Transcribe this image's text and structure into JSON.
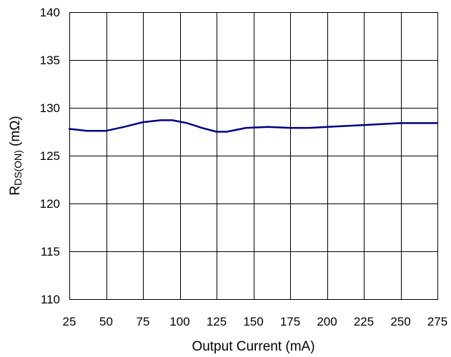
{
  "chart_data": {
    "type": "line",
    "title": "",
    "xlabel": "Output Current (mA)",
    "ylabel_main": "R",
    "ylabel_sub": "DS(ON)",
    "ylabel_unit": " (mΩ)",
    "xlim": [
      25,
      275
    ],
    "ylim": [
      110,
      140
    ],
    "x_ticks": [
      25,
      50,
      75,
      100,
      125,
      150,
      175,
      200,
      225,
      250,
      275
    ],
    "y_ticks": [
      110,
      115,
      120,
      125,
      130,
      135,
      140
    ],
    "grid": true,
    "series": [
      {
        "color": "#000080",
        "x": [
          25,
          37,
          50,
          62,
          75,
          87,
          95,
          105,
          115,
          125,
          132,
          145,
          160,
          175,
          188,
          200,
          225,
          250,
          275
        ],
        "y": [
          127.8,
          127.6,
          127.6,
          128.0,
          128.5,
          128.7,
          128.7,
          128.4,
          127.9,
          127.5,
          127.5,
          127.9,
          128.0,
          127.9,
          127.9,
          128.0,
          128.2,
          128.4,
          128.4
        ]
      }
    ]
  }
}
